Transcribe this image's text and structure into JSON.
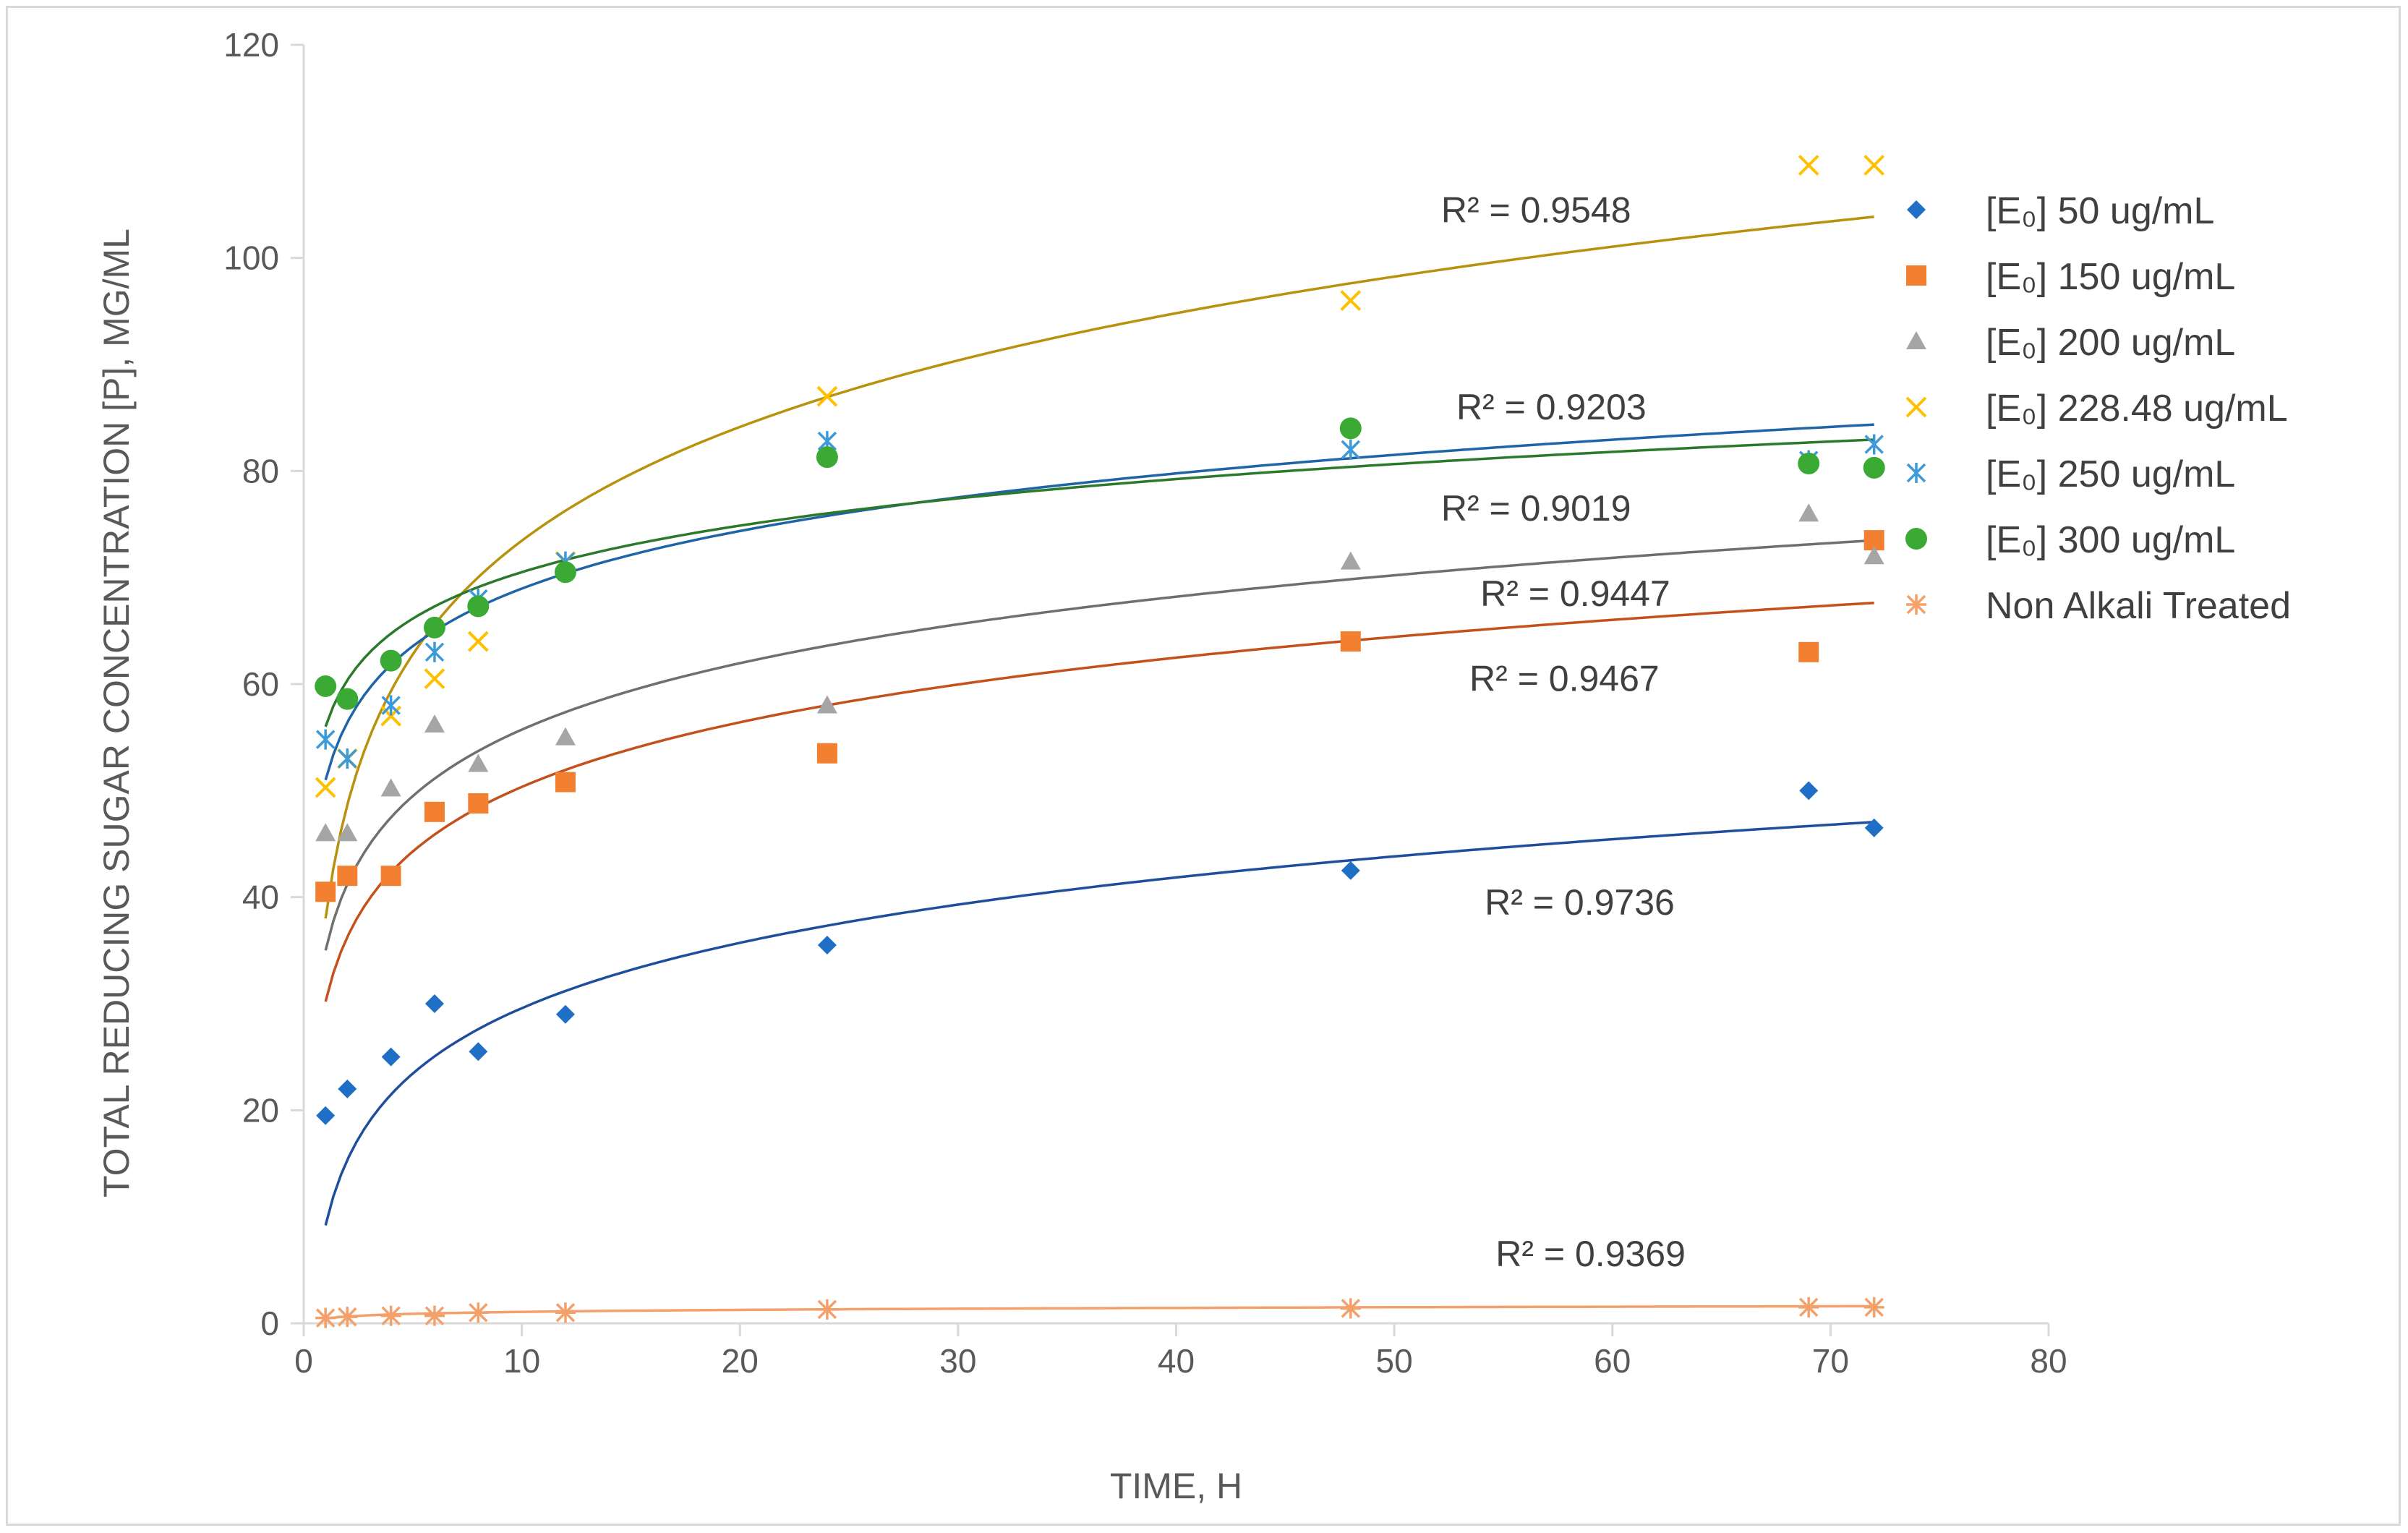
{
  "chart_data": {
    "type": "scatter",
    "title": "",
    "xlabel": "TIME, H",
    "ylabel": "TOTAL REDUCING SUGAR CONCENTRATION [P], MG/ML",
    "xlim": [
      0,
      80
    ],
    "ylim": [
      0,
      120
    ],
    "x_ticks": [
      "0",
      "10",
      "20",
      "30",
      "40",
      "50",
      "60",
      "70",
      "80"
    ],
    "y_ticks": [
      "0",
      "20",
      "40",
      "60",
      "80",
      "100",
      "120"
    ],
    "grid": false,
    "legend_position": "right",
    "x": [
      1,
      2,
      4,
      6,
      8,
      12,
      24,
      48,
      69,
      72
    ],
    "series": [
      {
        "name": "[E₀] 50 ug/mL",
        "marker": "diamond",
        "color": "#1f6fc6",
        "trend_color": "#1f4e9c",
        "values": [
          19.5,
          22,
          25,
          30,
          25.5,
          29,
          35.5,
          42.5,
          50,
          46.5
        ],
        "trendline": {
          "type": "log",
          "a": 9.2,
          "b": 8.85
        },
        "r2_label": "R² = 0.9736"
      },
      {
        "name": "[E₀] 150 ug/mL",
        "marker": "square",
        "color": "#f28030",
        "trend_color": "#c4501c",
        "values": [
          40.5,
          42,
          42,
          48,
          48.8,
          50.8,
          53.5,
          64,
          63,
          73.5
        ],
        "trendline": {
          "type": "log",
          "a": 30.2,
          "b": 8.75
        },
        "r2_label": "R² = 0.9467"
      },
      {
        "name": "[E₀] 200 ug/mL",
        "marker": "triangle",
        "color": "#a5a5a5",
        "trend_color": "#6f6f6f",
        "values": [
          46,
          46,
          50.2,
          56.2,
          52.5,
          55,
          58,
          71.5,
          76,
          72
        ],
        "trendline": {
          "type": "log",
          "a": 35,
          "b": 9.0
        },
        "r2_label": "R² = 0.9447"
      },
      {
        "name": "[E₀] 228.48 ug/mL",
        "marker": "x",
        "color": "#ffc000",
        "trend_color": "#b8920c",
        "values": [
          50.3,
          53,
          57,
          60.5,
          64,
          71.5,
          87,
          96,
          108.7,
          108.7
        ],
        "trendline": {
          "type": "log",
          "a": 38,
          "b": 15.4
        },
        "r2_label": "R² = 0.9548"
      },
      {
        "name": "[E₀] 250 ug/mL",
        "marker": "asterisk",
        "color": "#3c9ad8",
        "trend_color": "#1e64a6",
        "values": [
          54.8,
          53,
          58,
          63,
          68,
          71.5,
          82.8,
          82,
          81,
          82.5
        ],
        "trendline": {
          "type": "log",
          "a": 51,
          "b": 7.8
        },
        "r2_label": "R² = 0.9203"
      },
      {
        "name": "[E₀] 300 ug/mL",
        "marker": "circle",
        "color": "#3aaa35",
        "trend_color": "#2b7a2b",
        "values": [
          59.8,
          58.6,
          62.2,
          65.3,
          67.3,
          70.5,
          81.3,
          84,
          80.7,
          80.3
        ],
        "trendline": {
          "type": "log",
          "a": 56,
          "b": 6.3
        },
        "r2_label": "R² = 0.9019"
      },
      {
        "name": "Non Alkali Treated",
        "marker": "star",
        "color": "#f4a06a",
        "trend_color": "#f4a06a",
        "values": [
          0.5,
          0.6,
          0.7,
          0.7,
          1.0,
          1.0,
          1.3,
          1.4,
          1.5,
          1.5
        ],
        "trendline": {
          "type": "log",
          "a": 0.45,
          "b": 0.27
        },
        "r2_label": "R² = 0.9369"
      }
    ],
    "r2_label_anchor": [
      {
        "x": 58.5,
        "y": 39.5
      },
      {
        "x": 57.8,
        "y": 60.5
      },
      {
        "x": 58.3,
        "y": 68.5
      },
      {
        "x": 56.5,
        "y": 104.5
      },
      {
        "x": 57.2,
        "y": 86
      },
      {
        "x": 56.5,
        "y": 76.5
      },
      {
        "x": 59,
        "y": 6.5
      }
    ]
  }
}
